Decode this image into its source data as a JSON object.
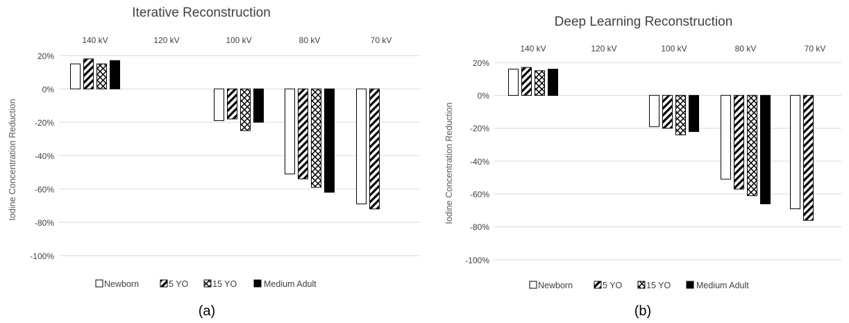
{
  "chart_data": [
    {
      "type": "bar",
      "title": "Iterative Reconstruction",
      "caption": "(a)",
      "ylabel": "Iodine Concentration Reduction",
      "xlabel": "",
      "categories": [
        "140 kV",
        "120 kV",
        "100 kV",
        "80 kV",
        "70 kV"
      ],
      "ylim": [
        -100,
        20
      ],
      "yticks": [
        20,
        0,
        -20,
        -40,
        -60,
        -80,
        -100
      ],
      "ytick_labels": [
        "20%",
        "0%",
        "-20%",
        "-40%",
        "-60%",
        "-80%",
        "-100%"
      ],
      "grid": true,
      "legend_position": "bottom",
      "series": [
        {
          "name": "Newborn",
          "pattern": "white",
          "values": [
            15,
            null,
            -19,
            -51,
            -69
          ]
        },
        {
          "name": "5 YO",
          "pattern": "diagonal-hatch",
          "values": [
            18,
            null,
            -18,
            -54,
            -72
          ]
        },
        {
          "name": "15 YO",
          "pattern": "crosshatch",
          "values": [
            15,
            null,
            -25,
            -59,
            null
          ]
        },
        {
          "name": "Medium Adult",
          "pattern": "solid-black",
          "values": [
            17,
            null,
            -20,
            -62,
            null
          ]
        }
      ]
    },
    {
      "type": "bar",
      "title": "Deep Learning Reconstruction",
      "caption": "(b)",
      "ylabel": "Iodine Concentration Reduction",
      "xlabel": "",
      "categories": [
        "140 kV",
        "120 kV",
        "100 kV",
        "80 kV",
        "70 kV"
      ],
      "ylim": [
        -100,
        20
      ],
      "yticks": [
        20,
        0,
        -20,
        -40,
        -60,
        -80,
        -100
      ],
      "ytick_labels": [
        "20%",
        "0%",
        "-20%",
        "-40%",
        "-60%",
        "-80%",
        "-100%"
      ],
      "grid": true,
      "legend_position": "bottom",
      "series": [
        {
          "name": "Newborn",
          "pattern": "white",
          "values": [
            16,
            null,
            -19,
            -51,
            -69
          ]
        },
        {
          "name": "5 YO",
          "pattern": "diagonal-hatch",
          "values": [
            17,
            null,
            -20,
            -57,
            -76
          ]
        },
        {
          "name": "15 YO",
          "pattern": "crosshatch",
          "values": [
            15,
            null,
            -24,
            -61,
            null
          ]
        },
        {
          "name": "Medium Adult",
          "pattern": "solid-black",
          "values": [
            16,
            null,
            -22,
            -66,
            null
          ]
        }
      ]
    }
  ]
}
